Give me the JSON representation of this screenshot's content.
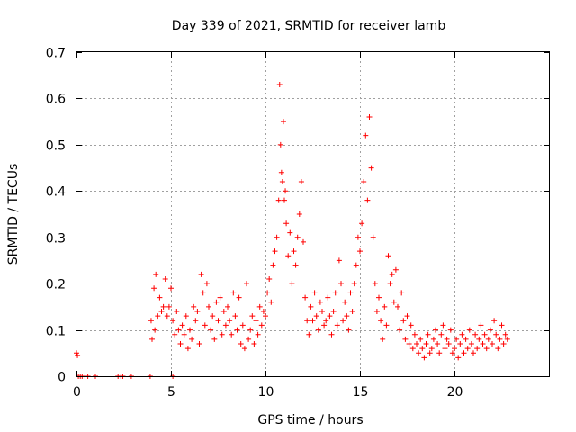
{
  "chart_data": {
    "type": "scatter",
    "title": "Day 339 of 2021, SRMTID for receiver lamb",
    "xlabel": "GPS time / hours",
    "ylabel": "SRMTID / TECUs",
    "xlim": [
      0,
      25
    ],
    "ylim": [
      0,
      0.7
    ],
    "xticks": [
      0,
      5,
      10,
      15,
      20
    ],
    "xtick_labels": [
      "0",
      "5",
      "10",
      "15",
      "20"
    ],
    "yticks": [
      0,
      0.1,
      0.2,
      0.3,
      0.4,
      0.5,
      0.6,
      0.7
    ],
    "ytick_labels": [
      "0",
      "0.1",
      "0.2",
      "0.3",
      "0.4",
      "0.5",
      "0.6",
      "0.7"
    ],
    "grid": true,
    "marker": "+",
    "marker_color": "#ff0000",
    "series": [
      {
        "name": "SRMTID",
        "x": [
          0.0,
          0.05,
          0.1,
          0.2,
          0.3,
          0.45,
          0.6,
          1.0,
          2.2,
          2.35,
          2.45,
          2.9,
          3.9,
          5.1,
          3.95,
          4.0,
          4.1,
          4.15,
          4.2,
          4.3,
          4.4,
          4.5,
          4.6,
          4.7,
          4.8,
          4.9,
          5.0,
          5.1,
          5.2,
          5.3,
          5.4,
          5.5,
          5.6,
          5.7,
          5.8,
          5.9,
          6.0,
          6.1,
          6.2,
          6.3,
          6.4,
          6.5,
          6.6,
          6.7,
          6.8,
          6.9,
          7.0,
          7.1,
          7.2,
          7.3,
          7.4,
          7.5,
          7.6,
          7.7,
          7.8,
          7.9,
          8.0,
          8.1,
          8.2,
          8.3,
          8.4,
          8.5,
          8.6,
          8.7,
          8.8,
          8.9,
          9.0,
          9.1,
          9.2,
          9.3,
          9.4,
          9.5,
          9.6,
          9.7,
          9.8,
          9.9,
          10.0,
          10.1,
          10.2,
          10.3,
          10.4,
          10.5,
          10.6,
          10.7,
          10.75,
          10.8,
          10.85,
          10.9,
          10.95,
          11.0,
          11.05,
          11.1,
          11.2,
          11.3,
          11.4,
          11.5,
          11.6,
          11.7,
          11.8,
          11.9,
          12.0,
          12.1,
          12.2,
          12.3,
          12.4,
          12.5,
          12.6,
          12.7,
          12.8,
          12.9,
          13.0,
          13.1,
          13.2,
          13.3,
          13.4,
          13.5,
          13.6,
          13.7,
          13.8,
          13.9,
          14.0,
          14.1,
          14.2,
          14.3,
          14.4,
          14.5,
          14.6,
          14.7,
          14.8,
          14.9,
          15.0,
          15.1,
          15.2,
          15.3,
          15.4,
          15.5,
          15.6,
          15.7,
          15.8,
          15.9,
          16.0,
          16.1,
          16.2,
          16.3,
          16.4,
          16.5,
          16.6,
          16.7,
          16.8,
          16.9,
          17.0,
          17.1,
          17.2,
          17.3,
          17.4,
          17.5,
          17.6,
          17.7,
          17.8,
          17.9,
          18.0,
          18.1,
          18.2,
          18.3,
          18.4,
          18.5,
          18.6,
          18.7,
          18.8,
          18.9,
          19.0,
          19.1,
          19.2,
          19.3,
          19.4,
          19.5,
          19.6,
          19.7,
          19.8,
          19.9,
          20.0,
          20.1,
          20.2,
          20.3,
          20.4,
          20.5,
          20.6,
          20.7,
          20.8,
          20.9,
          21.0,
          21.1,
          21.2,
          21.3,
          21.4,
          21.5,
          21.6,
          21.7,
          21.8,
          21.9,
          22.0,
          22.1,
          22.2,
          22.3,
          22.4,
          22.5,
          22.6,
          22.7,
          22.8
        ],
        "y": [
          0.05,
          0.045,
          0.0,
          0.0,
          0.0,
          0.0,
          0.0,
          0.0,
          0.0,
          0.0,
          0.0,
          0.0,
          0.0,
          0.0,
          0.12,
          0.08,
          0.19,
          0.1,
          0.22,
          0.13,
          0.17,
          0.14,
          0.15,
          0.21,
          0.13,
          0.15,
          0.19,
          0.12,
          0.09,
          0.14,
          0.1,
          0.07,
          0.11,
          0.09,
          0.13,
          0.06,
          0.1,
          0.08,
          0.15,
          0.12,
          0.14,
          0.07,
          0.22,
          0.18,
          0.11,
          0.2,
          0.15,
          0.1,
          0.13,
          0.08,
          0.16,
          0.12,
          0.17,
          0.09,
          0.14,
          0.11,
          0.15,
          0.12,
          0.09,
          0.18,
          0.13,
          0.1,
          0.17,
          0.07,
          0.11,
          0.06,
          0.2,
          0.08,
          0.1,
          0.13,
          0.07,
          0.12,
          0.09,
          0.15,
          0.11,
          0.14,
          0.13,
          0.18,
          0.21,
          0.16,
          0.24,
          0.27,
          0.3,
          0.38,
          0.63,
          0.5,
          0.44,
          0.42,
          0.55,
          0.38,
          0.4,
          0.33,
          0.26,
          0.31,
          0.2,
          0.27,
          0.24,
          0.3,
          0.35,
          0.42,
          0.29,
          0.17,
          0.12,
          0.09,
          0.15,
          0.12,
          0.18,
          0.13,
          0.1,
          0.16,
          0.14,
          0.11,
          0.12,
          0.17,
          0.13,
          0.09,
          0.14,
          0.18,
          0.11,
          0.25,
          0.2,
          0.12,
          0.16,
          0.13,
          0.1,
          0.18,
          0.14,
          0.2,
          0.24,
          0.3,
          0.27,
          0.33,
          0.42,
          0.52,
          0.38,
          0.56,
          0.45,
          0.3,
          0.2,
          0.14,
          0.17,
          0.12,
          0.08,
          0.15,
          0.11,
          0.26,
          0.2,
          0.22,
          0.16,
          0.23,
          0.15,
          0.1,
          0.18,
          0.12,
          0.08,
          0.13,
          0.07,
          0.11,
          0.06,
          0.09,
          0.07,
          0.05,
          0.08,
          0.06,
          0.04,
          0.07,
          0.09,
          0.05,
          0.06,
          0.08,
          0.1,
          0.07,
          0.05,
          0.09,
          0.11,
          0.06,
          0.08,
          0.07,
          0.1,
          0.05,
          0.06,
          0.08,
          0.04,
          0.07,
          0.09,
          0.05,
          0.08,
          0.06,
          0.1,
          0.07,
          0.05,
          0.09,
          0.06,
          0.08,
          0.11,
          0.07,
          0.09,
          0.06,
          0.08,
          0.1,
          0.07,
          0.12,
          0.09,
          0.06,
          0.08,
          0.11,
          0.07,
          0.09,
          0.08
        ]
      }
    ]
  }
}
